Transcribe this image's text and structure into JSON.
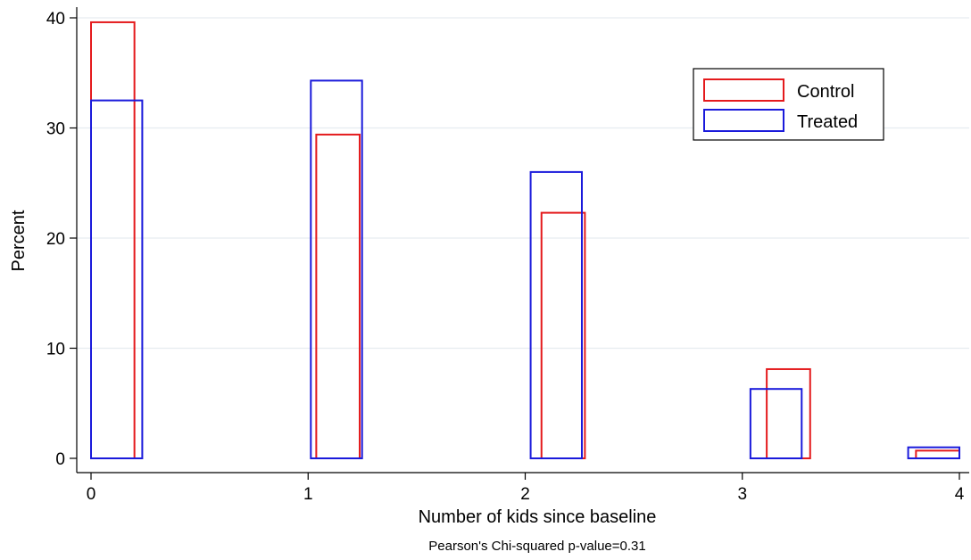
{
  "chart_data": {
    "type": "bar",
    "title": "",
    "xlabel": "Number of kids since baseline",
    "ylabel": "Percent",
    "note": "Pearson's Chi-squared p-value=0.31",
    "x": [
      0,
      1,
      2,
      3,
      4
    ],
    "x_ticks": [
      "0",
      "1",
      "2",
      "3",
      "4"
    ],
    "y_ticks": [
      "0",
      "10",
      "20",
      "30",
      "40"
    ],
    "xlim": [
      0,
      4
    ],
    "ylim": [
      0,
      40
    ],
    "grid": true,
    "legend_position": "top-right",
    "series": [
      {
        "name": "Control",
        "color": "#e41a1c",
        "values": [
          39.6,
          29.4,
          22.3,
          8.1,
          0.7
        ]
      },
      {
        "name": "Treated",
        "color": "#1a1adb",
        "values": [
          32.5,
          34.3,
          26.0,
          6.3,
          1.0
        ]
      }
    ]
  }
}
